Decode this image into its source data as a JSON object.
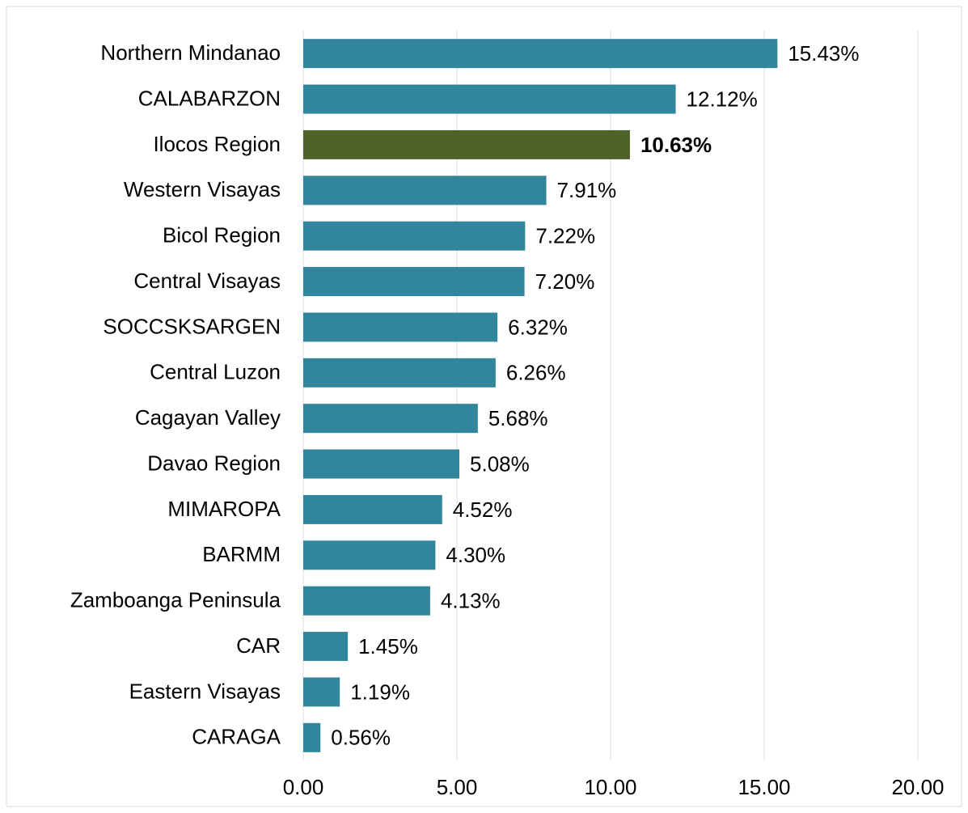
{
  "chart_data": {
    "type": "hbar",
    "categories": [
      "Northern Mindanao",
      "CALABARZON",
      "Ilocos Region",
      "Western Visayas",
      "Bicol Region",
      "Central Visayas",
      "SOCCSKSARGEN",
      "Central Luzon",
      "Cagayan Valley",
      "Davao Region",
      "MIMAROPA",
      "BARMM",
      "Zamboanga Peninsula",
      "CAR",
      "Eastern Visayas",
      "CARAGA"
    ],
    "values": [
      15.43,
      12.12,
      10.63,
      7.91,
      7.22,
      7.2,
      6.32,
      6.26,
      5.68,
      5.08,
      4.52,
      4.3,
      4.13,
      1.45,
      1.19,
      0.56
    ],
    "value_labels": [
      "15.43%",
      "12.12%",
      "10.63%",
      "7.91%",
      "7.22%",
      "7.20%",
      "6.32%",
      "6.26%",
      "5.68%",
      "5.08%",
      "4.52%",
      "4.30%",
      "4.13%",
      "1.45%",
      "1.19%",
      "0.56%"
    ],
    "colors": [
      "#31859c",
      "#31859c",
      "#4f6228",
      "#31859c",
      "#31859c",
      "#31859c",
      "#31859c",
      "#31859c",
      "#31859c",
      "#31859c",
      "#31859c",
      "#31859c",
      "#31859c",
      "#31859c",
      "#31859c",
      "#31859c"
    ],
    "value_label_bold": [
      false,
      false,
      true,
      false,
      false,
      false,
      false,
      false,
      false,
      false,
      false,
      false,
      false,
      false,
      false,
      false
    ],
    "xlim": [
      0,
      20
    ],
    "xticks": [
      {
        "value": 0,
        "label": "0.00"
      },
      {
        "value": 5,
        "label": "5.00"
      },
      {
        "value": 10,
        "label": "10.00"
      },
      {
        "value": 15,
        "label": "15.00"
      },
      {
        "value": 20,
        "label": "20.00"
      }
    ],
    "grid": true
  }
}
